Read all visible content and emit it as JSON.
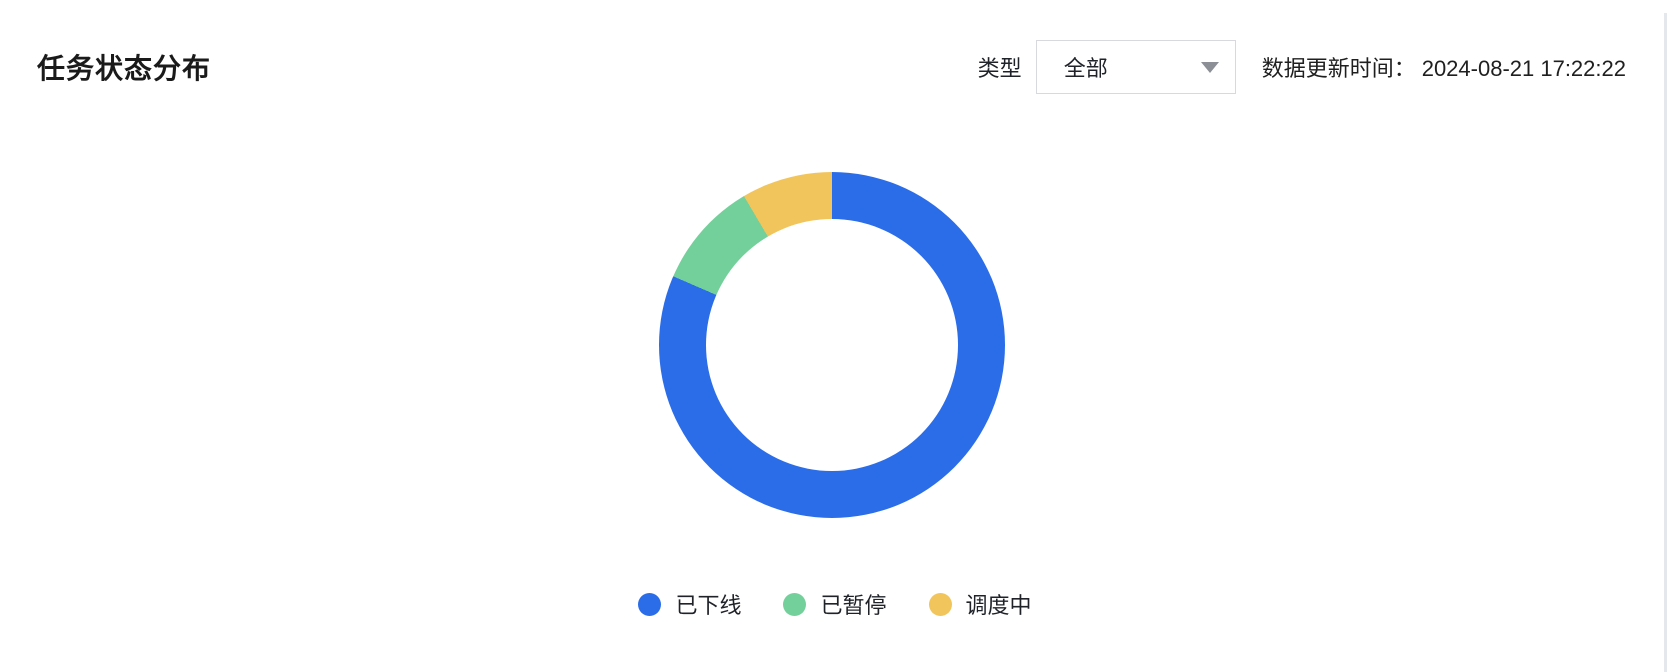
{
  "panel": {
    "title": "任务状态分布"
  },
  "controls": {
    "type_label": "类型",
    "type_select_value": "全部",
    "update_time_label": "数据更新时间：",
    "update_time_value": "2024-08-21 17:22:22"
  },
  "colors": {
    "blue": "#2B6DE8",
    "green": "#74D09A",
    "yellow": "#F2C55C",
    "select_border": "#D7D9DE",
    "text_dark": "#1F2329"
  },
  "chart_data": {
    "type": "pie",
    "subtype": "donut",
    "title": "任务状态分布",
    "start_angle_deg": 0,
    "direction": "clockwise",
    "legend_position": "bottom",
    "values_shown": false,
    "inner_radius_px": 126,
    "outer_radius_px": 173,
    "series": [
      {
        "name": "已下线",
        "percent": 81.5,
        "color": "#2B6DE8"
      },
      {
        "name": "已暂停",
        "percent": 10.0,
        "color": "#74D09A"
      },
      {
        "name": "调度中",
        "percent": 8.5,
        "color": "#F2C55C"
      }
    ]
  }
}
